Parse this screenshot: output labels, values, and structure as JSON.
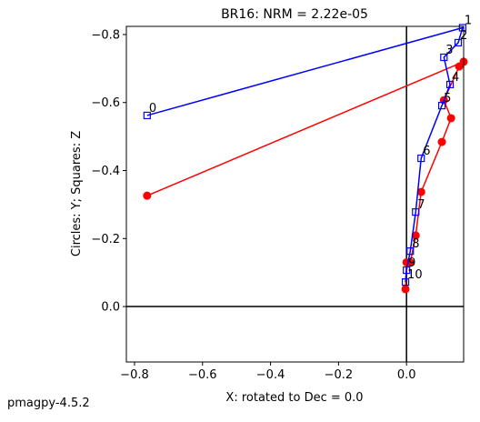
{
  "chart_data": {
    "type": "line",
    "title": "BR16: NRM =  2.22e-05",
    "x_label": "X: rotated to Dec =     0.0",
    "y_label": "Circles: Y; Squares: Z",
    "footer": "pmagpy-4.5.2",
    "xlim": [
      -0.824,
      0.168
    ],
    "ylim": [
      0.163,
      -0.824
    ],
    "xticks": [
      {
        "value": -0.8,
        "label": "−0.8"
      },
      {
        "value": -0.6,
        "label": "−0.6"
      },
      {
        "value": -0.4,
        "label": "−0.4"
      },
      {
        "value": -0.2,
        "label": "−0.2"
      },
      {
        "value": 0,
        "label": "0.0"
      }
    ],
    "yticks": [
      {
        "value": -0.8,
        "label": "−0.8"
      },
      {
        "value": -0.6,
        "label": "−0.6"
      },
      {
        "value": -0.4,
        "label": "−0.4"
      },
      {
        "value": -0.2,
        "label": "−0.2"
      },
      {
        "value": 0,
        "label": "0.0"
      }
    ],
    "origin_lines": true,
    "series": [
      {
        "marker": "circle",
        "color": "#ff0000",
        "x": [
          -0.763,
          0.168,
          0.155,
          0.11,
          0.131,
          0.104,
          0.043,
          0.027,
          0.011,
          0.0,
          -0.003
        ],
        "values": [
          -0.326,
          -0.72,
          -0.706,
          -0.607,
          -0.554,
          -0.484,
          -0.337,
          -0.209,
          -0.129,
          -0.13,
          -0.051
        ]
      },
      {
        "marker": "square",
        "color": "#0000ff",
        "x": [
          -0.763,
          0.165,
          0.152,
          0.11,
          0.128,
          0.104,
          0.043,
          0.027,
          0.011,
          0.0,
          -0.003
        ],
        "values": [
          -0.562,
          -0.82,
          -0.776,
          -0.733,
          -0.653,
          -0.591,
          -0.436,
          -0.278,
          -0.163,
          -0.107,
          -0.072
        ],
        "point_labels": [
          "0",
          "1",
          "2",
          "3",
          "4",
          "5",
          "6",
          "7",
          "8",
          "9",
          "10"
        ]
      }
    ]
  }
}
